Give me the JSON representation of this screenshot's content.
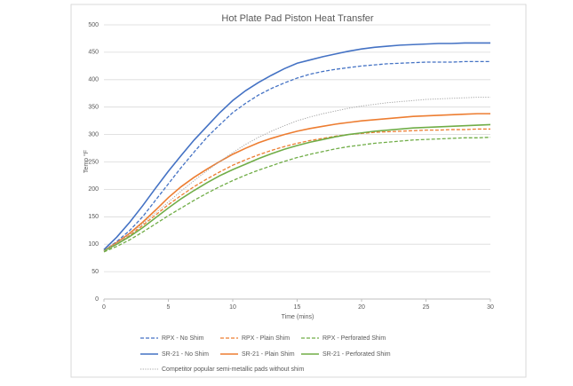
{
  "chart_data": {
    "type": "line",
    "title": "Hot Plate Pad Piston Heat Transfer",
    "x_label": "Time (mins)",
    "y_label": "Temp °F",
    "x": [
      0,
      1,
      2,
      3,
      4,
      5,
      6,
      7,
      8,
      9,
      10,
      11,
      12,
      13,
      14,
      15,
      16,
      17,
      18,
      19,
      20,
      21,
      22,
      23,
      24,
      25,
      26,
      27,
      28,
      29,
      30
    ],
    "xlim": [
      0,
      30
    ],
    "xticks": [
      0,
      5,
      10,
      15,
      20,
      25,
      30
    ],
    "ylim": [
      0,
      500
    ],
    "yticks": [
      0,
      50,
      100,
      150,
      200,
      250,
      300,
      350,
      400,
      450,
      500
    ],
    "grid": true,
    "legend": "bottom",
    "series": [
      {
        "name": "RPX - No Shim",
        "color": "#4472c4",
        "style": "dashed",
        "values": [
          88,
          105,
          125,
          150,
          180,
          210,
          240,
          268,
          295,
          318,
          340,
          357,
          372,
          384,
          394,
          403,
          410,
          415,
          419,
          422,
          425,
          427,
          429,
          430,
          431,
          432,
          432,
          432,
          433,
          433,
          433
        ]
      },
      {
        "name": "RPX - Plain Shim",
        "color": "#ed7d31",
        "style": "dashed",
        "values": [
          87,
          100,
          116,
          134,
          153,
          172,
          189,
          205,
          219,
          232,
          244,
          254,
          263,
          271,
          278,
          284,
          289,
          293,
          297,
          300,
          302,
          304,
          305,
          306,
          307,
          308,
          308,
          309,
          309,
          310,
          310
        ]
      },
      {
        "name": "RPX - Perforated Shim",
        "color": "#70ad47",
        "style": "dashed",
        "values": [
          86,
          96,
          108,
          122,
          137,
          152,
          166,
          180,
          193,
          205,
          216,
          226,
          235,
          243,
          251,
          258,
          264,
          269,
          274,
          278,
          281,
          284,
          286,
          288,
          290,
          291,
          292,
          293,
          294,
          294,
          295
        ]
      },
      {
        "name": "SR-21 - No Shim",
        "color": "#4472c4",
        "style": "solid",
        "values": [
          90,
          113,
          140,
          170,
          202,
          233,
          262,
          290,
          315,
          340,
          362,
          380,
          395,
          408,
          420,
          430,
          436,
          442,
          447,
          452,
          456,
          459,
          461,
          463,
          464,
          465,
          466,
          466,
          467,
          467,
          467
        ]
      },
      {
        "name": "SR-21 - Plain Shim",
        "color": "#ed7d31",
        "style": "solid",
        "values": [
          88,
          103,
          120,
          140,
          162,
          185,
          205,
          222,
          237,
          251,
          264,
          275,
          285,
          293,
          300,
          306,
          311,
          315,
          319,
          322,
          325,
          327,
          329,
          331,
          333,
          334,
          335,
          336,
          337,
          338,
          338
        ]
      },
      {
        "name": "SR-21 - Perforated Shim",
        "color": "#70ad47",
        "style": "solid",
        "values": [
          88,
          100,
          114,
          130,
          148,
          166,
          183,
          198,
          212,
          225,
          236,
          246,
          256,
          265,
          273,
          280,
          286,
          291,
          296,
          300,
          303,
          306,
          308,
          310,
          312,
          313,
          314,
          315,
          316,
          317,
          318
        ]
      },
      {
        "name": "Competitor popular semi-metallic pads without shim",
        "color": "#a5a5a5",
        "style": "dotted",
        "values": [
          88,
          102,
          118,
          137,
          157,
          177,
          197,
          216,
          234,
          251,
          267,
          282,
          295,
          306,
          316,
          325,
          332,
          338,
          343,
          348,
          352,
          355,
          358,
          360,
          362,
          364,
          365,
          366,
          367,
          368,
          368
        ]
      }
    ]
  }
}
